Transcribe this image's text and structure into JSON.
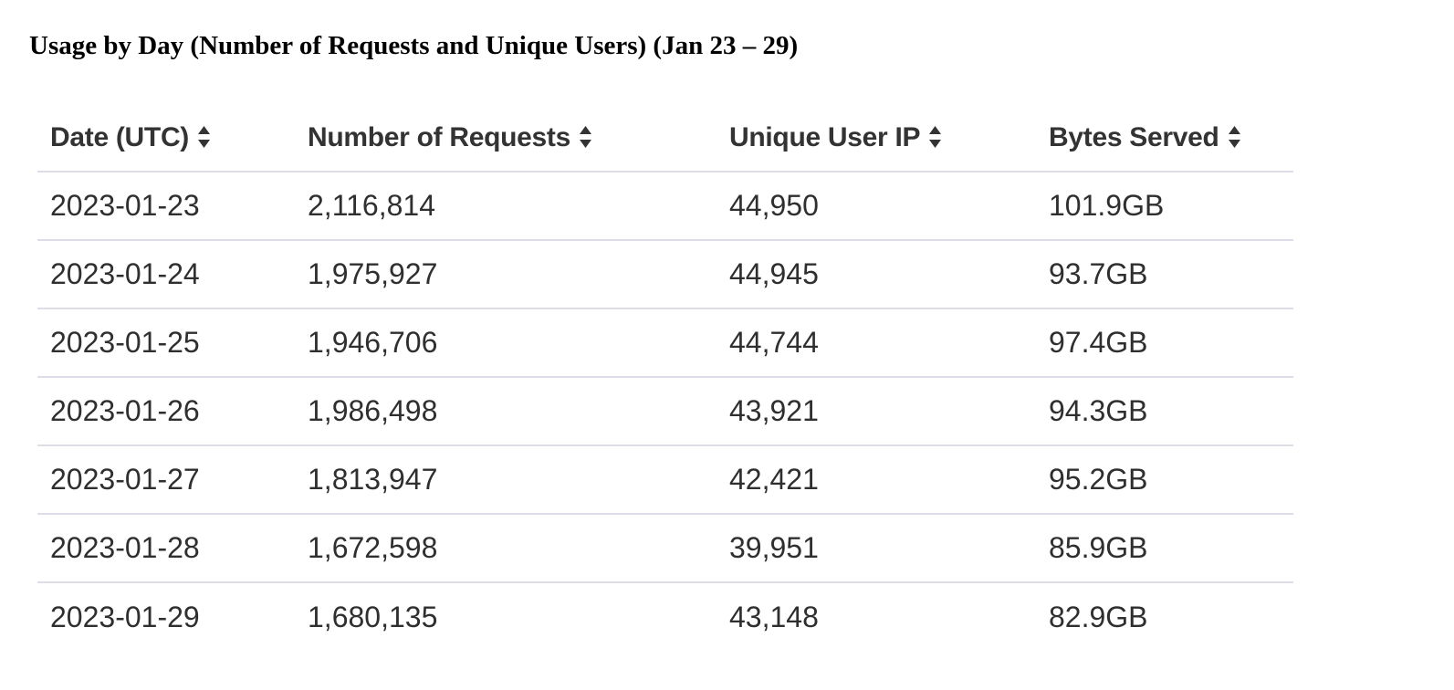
{
  "title": "Usage by Day (Number of Requests and Unique Users) (Jan 23 – 29)",
  "table": {
    "headers": [
      {
        "label": "Date (UTC)",
        "icon": "sort-icon"
      },
      {
        "label": "Number of Requests",
        "icon": "sort-icon"
      },
      {
        "label": "Unique User IP",
        "icon": "sort-icon"
      },
      {
        "label": "Bytes Served",
        "icon": "sort-icon"
      }
    ],
    "rows": [
      [
        "2023-01-23",
        "2,116,814",
        "44,950",
        "101.9GB"
      ],
      [
        "2023-01-24",
        "1,975,927",
        "44,945",
        "93.7GB"
      ],
      [
        "2023-01-25",
        "1,946,706",
        "44,744",
        "97.4GB"
      ],
      [
        "2023-01-26",
        "1,986,498",
        "43,921",
        "94.3GB"
      ],
      [
        "2023-01-27",
        "1,813,947",
        "42,421",
        "95.2GB"
      ],
      [
        "2023-01-28",
        "1,672,598",
        "39,951",
        "85.9GB"
      ],
      [
        "2023-01-29",
        "1,680,135",
        "43,148",
        "82.9GB"
      ]
    ]
  },
  "colors": {
    "header_text": "#333333",
    "cell_text": "#2f2f2f",
    "row_divider": "#dcdde6"
  }
}
